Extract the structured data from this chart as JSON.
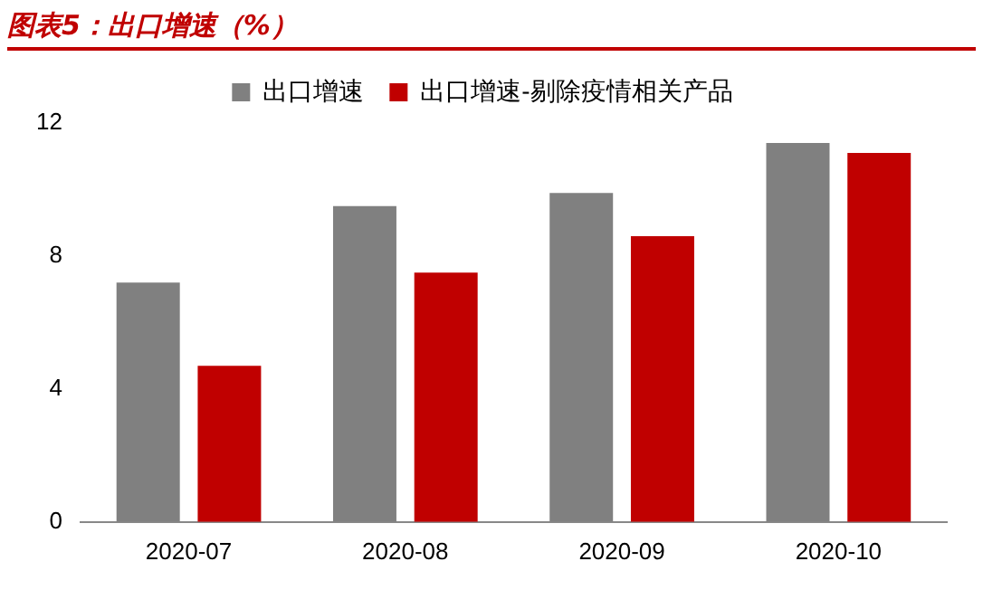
{
  "chart_data": {
    "type": "bar",
    "title": "图表5：出口增速（%）",
    "categories": [
      "2020-07",
      "2020-08",
      "2020-09",
      "2020-10"
    ],
    "series": [
      {
        "name": "出口增速",
        "color": "#808080",
        "values": [
          7.2,
          9.5,
          9.9,
          11.4
        ]
      },
      {
        "name": "出口增速-剔除疫情相关产品",
        "color": "#c00000",
        "values": [
          4.7,
          7.5,
          8.6,
          11.1
        ]
      }
    ],
    "ylim": [
      0,
      12
    ],
    "yticks": [
      0,
      4,
      8,
      12
    ],
    "grid": false,
    "legend": "top"
  }
}
